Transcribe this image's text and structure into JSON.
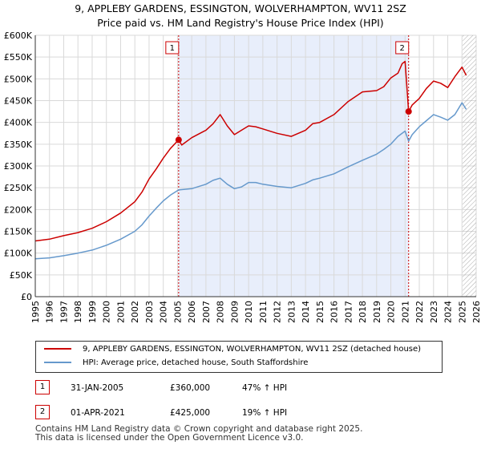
{
  "title_line1": "9, APPLEBY GARDENS, ESSINGTON, WOLVERHAMPTON, WV11 2SZ",
  "title_line2": "Price paid vs. HM Land Registry's House Price Index (HPI)",
  "colors": {
    "property": "#cc0000",
    "hpi": "#6699cc",
    "shade": "#e8eefb",
    "grid": "#d9d9d9",
    "future_hatch": "#aaaaaa"
  },
  "chart_data": {
    "type": "line",
    "title": "9, APPLEBY GARDENS, ESSINGTON, WOLVERHAMPTON, WV11 2SZ — Price paid vs. HM Land Registry's House Price Index (HPI)",
    "xlabel": "",
    "ylabel": "",
    "xlim": [
      1995,
      2026
    ],
    "ylim": [
      0,
      600000
    ],
    "x_ticks": [
      "1995",
      "1996",
      "1997",
      "1998",
      "1999",
      "2000",
      "2001",
      "2002",
      "2003",
      "2004",
      "2005",
      "2006",
      "2007",
      "2008",
      "2009",
      "2010",
      "2011",
      "2012",
      "2013",
      "2014",
      "2015",
      "2016",
      "2017",
      "2018",
      "2019",
      "2020",
      "2021",
      "2022",
      "2023",
      "2024",
      "2025",
      "2026"
    ],
    "y_ticks": [
      {
        "value": 0,
        "label": "£0"
      },
      {
        "value": 50000,
        "label": "£50K"
      },
      {
        "value": 100000,
        "label": "£100K"
      },
      {
        "value": 150000,
        "label": "£150K"
      },
      {
        "value": 200000,
        "label": "£200K"
      },
      {
        "value": 250000,
        "label": "£250K"
      },
      {
        "value": 300000,
        "label": "£300K"
      },
      {
        "value": 350000,
        "label": "£350K"
      },
      {
        "value": 400000,
        "label": "£400K"
      },
      {
        "value": 450000,
        "label": "£450K"
      },
      {
        "value": 500000,
        "label": "£500K"
      },
      {
        "value": 550000,
        "label": "£550K"
      },
      {
        "value": 600000,
        "label": "£600K"
      }
    ],
    "grid": true,
    "series": [
      {
        "name": "9, APPLEBY GARDENS, ESSINGTON, WOLVERHAMPTON, WV11 2SZ (detached house)",
        "color": "#cc0000",
        "x": [
          1995.0,
          1996.0,
          1997.0,
          1998.0,
          1999.0,
          2000.0,
          2001.0,
          2002.0,
          2002.5,
          2003.0,
          2003.5,
          2004.0,
          2004.5,
          2005.08,
          2005.3,
          2006.0,
          2007.0,
          2007.5,
          2008.0,
          2008.5,
          2009.0,
          2009.5,
          2010.0,
          2010.5,
          2011.0,
          2012.0,
          2013.0,
          2014.0,
          2014.5,
          2015.0,
          2016.0,
          2017.0,
          2018.0,
          2019.0,
          2019.5,
          2020.0,
          2020.5,
          2020.8,
          2021.0,
          2021.25,
          2021.5,
          2022.0,
          2022.5,
          2023.0,
          2023.5,
          2024.0,
          2024.5,
          2025.0,
          2025.3
        ],
        "y": [
          128000,
          132000,
          140000,
          147000,
          157000,
          172000,
          192000,
          218000,
          240000,
          270000,
          293000,
          318000,
          340000,
          360000,
          348000,
          365000,
          382000,
          397000,
          418000,
          392000,
          372000,
          382000,
          392000,
          390000,
          385000,
          375000,
          368000,
          382000,
          397000,
          400000,
          418000,
          448000,
          470000,
          473000,
          482000,
          502000,
          513000,
          535000,
          540000,
          425000,
          440000,
          455000,
          478000,
          495000,
          490000,
          480000,
          505000,
          527000,
          508000
        ]
      },
      {
        "name": "HPI: Average price, detached house, South Staffordshire",
        "color": "#6699cc",
        "x": [
          1995.0,
          1996.0,
          1997.0,
          1998.0,
          1999.0,
          2000.0,
          2001.0,
          2002.0,
          2002.5,
          2003.0,
          2003.5,
          2004.0,
          2004.5,
          2005.08,
          2006.0,
          2007.0,
          2007.5,
          2008.0,
          2008.5,
          2009.0,
          2009.5,
          2010.0,
          2010.5,
          2011.0,
          2012.0,
          2013.0,
          2014.0,
          2014.5,
          2015.0,
          2016.0,
          2017.0,
          2018.0,
          2019.0,
          2019.5,
          2020.0,
          2020.5,
          2021.0,
          2021.25,
          2021.5,
          2022.0,
          2022.5,
          2023.0,
          2023.5,
          2024.0,
          2024.5,
          2025.0,
          2025.3
        ],
        "y": [
          87000,
          89000,
          94000,
          100000,
          107000,
          118000,
          132000,
          150000,
          165000,
          185000,
          203000,
          220000,
          233000,
          245000,
          248000,
          258000,
          267000,
          272000,
          258000,
          248000,
          252000,
          262000,
          262000,
          258000,
          253000,
          250000,
          260000,
          268000,
          272000,
          282000,
          298000,
          313000,
          327000,
          338000,
          350000,
          368000,
          380000,
          357000,
          372000,
          390000,
          404000,
          418000,
          412000,
          405000,
          418000,
          445000,
          430000
        ]
      }
    ],
    "markers": [
      {
        "id": "1",
        "x": 2005.08,
        "y": 360000
      },
      {
        "id": "2",
        "x": 2021.25,
        "y": 425000
      }
    ],
    "legend": "bottom"
  },
  "legend": {
    "property_label": "9, APPLEBY GARDENS, ESSINGTON, WOLVERHAMPTON, WV11 2SZ (detached house)",
    "hpi_label": "HPI: Average price, detached house, South Staffordshire"
  },
  "transactions": [
    {
      "num": "1",
      "date": "31-JAN-2005",
      "price": "£360,000",
      "hpi": "47% ↑ HPI"
    },
    {
      "num": "2",
      "date": "01-APR-2021",
      "price": "£425,000",
      "hpi": "19% ↑ HPI"
    }
  ],
  "footer_line1": "Contains HM Land Registry data © Crown copyright and database right 2025.",
  "footer_line2": "This data is licensed under the Open Government Licence v3.0."
}
